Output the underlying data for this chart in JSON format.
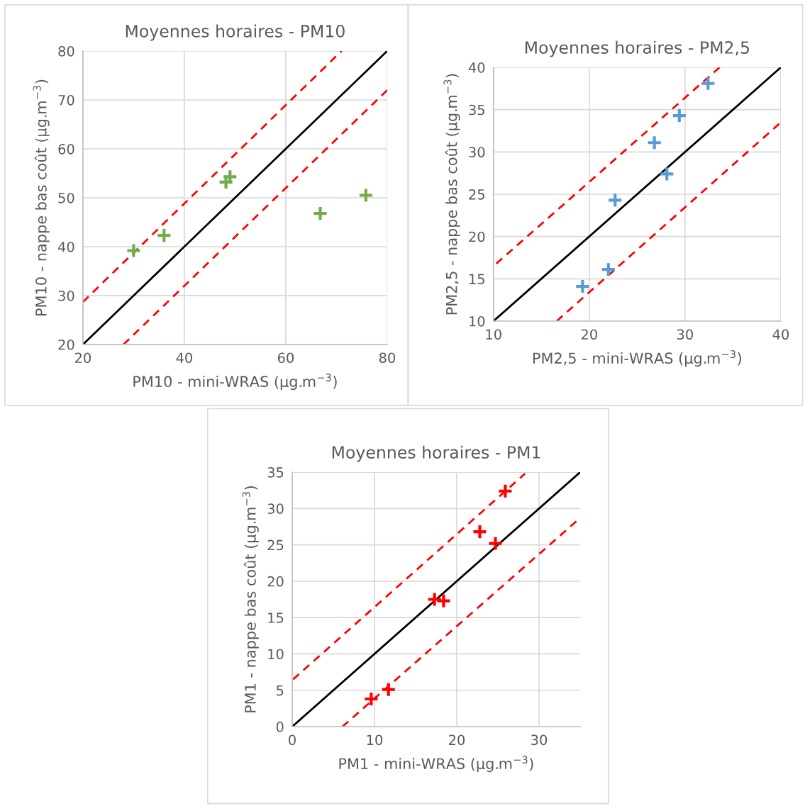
{
  "chart_data": [
    {
      "type": "scatter",
      "title": "Moyennes horaires - PM10",
      "xlabel": "PM10 - mini-WRAS (µg.m$^{−3}$)",
      "ylabel": "PM10 - nappe bas coût (µg.m$^{−3}$)",
      "xlim": [
        20,
        80
      ],
      "ylim": [
        20,
        80
      ],
      "xticks": [
        20,
        40,
        60,
        80
      ],
      "yticks": [
        20,
        30,
        40,
        50,
        60,
        70,
        80
      ],
      "grid": true,
      "legend": false,
      "marker": "cross",
      "series": [
        {
          "color": "#70ad47",
          "x": [
            30,
            36,
            48.2,
            49,
            66.8,
            75.8
          ],
          "values": [
            39.2,
            42.3,
            53.2,
            54.3,
            46.8,
            50.5
          ]
        },
        {
          "type": "line",
          "color": "#000000",
          "line_style": "solid",
          "marker": "none",
          "x": [
            20,
            80
          ],
          "values": [
            20,
            80
          ]
        },
        {
          "type": "line",
          "color": "#ff0000",
          "line_style": "dashed",
          "marker": "none",
          "x": [
            20,
            71
          ],
          "values": [
            28.7,
            80
          ]
        },
        {
          "type": "line",
          "color": "#ff0000",
          "line_style": "dashed",
          "marker": "none",
          "x": [
            28,
            80
          ],
          "values": [
            20,
            72
          ]
        }
      ]
    },
    {
      "type": "scatter",
      "title": "Moyennes horaires - PM2,5",
      "xlabel": "PM2,5 - mini-WRAS (µg.m$^{−3}$)",
      "ylabel": "PM2,5 - nappe bas coût (µg.m$^{−3}$)",
      "xlim": [
        10,
        40
      ],
      "ylim": [
        10,
        40
      ],
      "xticks": [
        10,
        20,
        30,
        40
      ],
      "yticks": [
        10,
        15,
        20,
        25,
        30,
        35,
        40
      ],
      "grid": true,
      "legend": false,
      "marker": "cross",
      "series": [
        {
          "color": "#5b9bd5",
          "x": [
            32.4,
            29.4,
            26.8,
            28.1,
            22.7,
            22,
            19.3
          ],
          "values": [
            38.1,
            34.3,
            31.1,
            27.4,
            24.3,
            16.1,
            14.1
          ]
        },
        {
          "type": "line",
          "color": "#000000",
          "line_style": "solid",
          "marker": "none",
          "x": [
            10,
            40
          ],
          "values": [
            10,
            40
          ]
        },
        {
          "type": "line",
          "color": "#ff0000",
          "line_style": "dashed",
          "marker": "none",
          "x": [
            10.3,
            33.6
          ],
          "values": [
            16.8,
            40
          ]
        },
        {
          "type": "line",
          "color": "#ff0000",
          "line_style": "dashed",
          "marker": "none",
          "x": [
            16.6,
            39.9
          ],
          "values": [
            10,
            33.4
          ]
        }
      ]
    },
    {
      "type": "scatter",
      "title": "Moyennes horaires - PM1",
      "xlabel": "PM1 - mini-WRAS (µg.m$^{−3}$)",
      "ylabel": "PM1 - nappe bas coût (µg.m$^{−3}$)",
      "xlim": [
        0,
        35
      ],
      "ylim": [
        0,
        35
      ],
      "xticks": [
        0,
        10,
        20,
        30
      ],
      "yticks": [
        0,
        5,
        10,
        15,
        20,
        25,
        30,
        35
      ],
      "grid": true,
      "legend": false,
      "marker": "cross",
      "series": [
        {
          "color": "#ff0000",
          "x": [
            25.9,
            22.8,
            24.7,
            17.3,
            18.4,
            11.7,
            9.6
          ],
          "values": [
            32.4,
            26.8,
            25.2,
            17.5,
            17.3,
            5.1,
            3.8
          ]
        },
        {
          "type": "line",
          "color": "#000000",
          "line_style": "solid",
          "marker": "none",
          "x": [
            0,
            35
          ],
          "values": [
            0,
            35
          ]
        },
        {
          "type": "line",
          "color": "#ff0000",
          "line_style": "dashed",
          "marker": "none",
          "x": [
            0.1,
            28.3
          ],
          "values": [
            6.5,
            34.8
          ]
        },
        {
          "type": "line",
          "color": "#ff0000",
          "line_style": "dashed",
          "marker": "none",
          "x": [
            6.1,
            35
          ],
          "values": [
            0,
            28.7
          ]
        }
      ]
    }
  ]
}
